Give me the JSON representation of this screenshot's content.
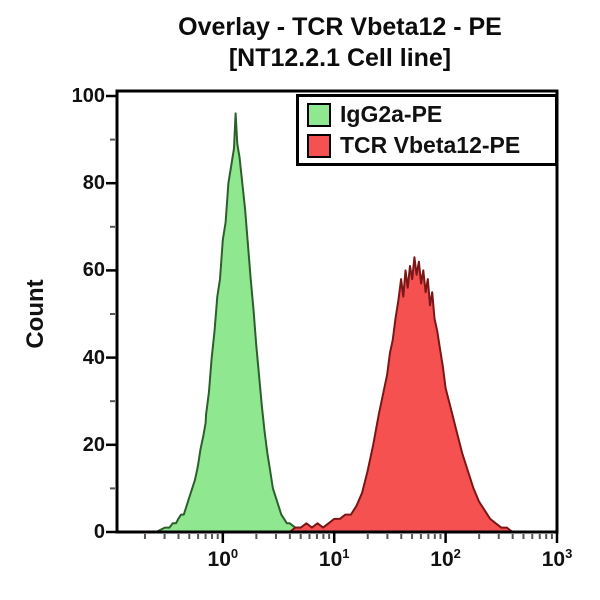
{
  "title": {
    "line1": "Overlay - TCR Vbeta12 - PE",
    "line2": "[NT12.2.1 Cell line]"
  },
  "axes": {
    "y_label": "Count",
    "y_ticks": [
      0,
      20,
      40,
      60,
      80,
      100
    ],
    "y_minor_ticks": [
      10,
      30,
      50,
      70,
      90
    ],
    "x_tick_base": "10",
    "x_tick_exponents": [
      0,
      1,
      2,
      3
    ]
  },
  "legend": {
    "items": [
      {
        "label": "IgG2a-PE",
        "fill": "#8fe88f",
        "border": "#000000"
      },
      {
        "label": "TCR Vbeta12-PE",
        "fill": "#f55151",
        "border": "#000000"
      }
    ]
  },
  "chart_data": {
    "type": "area",
    "subtype": "flow-cytometry-histogram-overlay",
    "title": "Overlay - TCR Vbeta12 - PE [NT12.2.1 Cell line]",
    "xlabel": "",
    "ylabel": "Count",
    "x_scale": "log10",
    "xlim_log10": [
      -0.95,
      3.0
    ],
    "ylim": [
      0,
      100
    ],
    "x_ticks_log10": [
      0,
      1,
      2,
      3
    ],
    "y_ticks": [
      0,
      20,
      40,
      60,
      80,
      100
    ],
    "grid": false,
    "legend_position": "top-right",
    "series": [
      {
        "name": "IgG2a-PE",
        "fill": "#8fe88f",
        "stroke": "#2d5e2d",
        "peak_log10x": 0.115,
        "peak_count": 96,
        "points_log10x_count": [
          [
            -0.6,
            0
          ],
          [
            -0.52,
            1
          ],
          [
            -0.48,
            1
          ],
          [
            -0.45,
            2
          ],
          [
            -0.42,
            2
          ],
          [
            -0.4,
            3
          ],
          [
            -0.375,
            4
          ],
          [
            -0.35,
            4
          ],
          [
            -0.325,
            6
          ],
          [
            -0.3,
            8
          ],
          [
            -0.275,
            10
          ],
          [
            -0.25,
            12
          ],
          [
            -0.225,
            15
          ],
          [
            -0.2,
            19
          ],
          [
            -0.175,
            22
          ],
          [
            -0.155,
            25
          ],
          [
            -0.15,
            27
          ],
          [
            -0.125,
            32
          ],
          [
            -0.1,
            40
          ],
          [
            -0.075,
            46
          ],
          [
            -0.05,
            54
          ],
          [
            -0.025,
            58
          ],
          [
            0.0,
            67
          ],
          [
            0.025,
            71
          ],
          [
            0.05,
            80
          ],
          [
            0.075,
            84
          ],
          [
            0.1,
            88
          ],
          [
            0.115,
            96
          ],
          [
            0.13,
            89
          ],
          [
            0.15,
            86
          ],
          [
            0.175,
            80
          ],
          [
            0.2,
            74
          ],
          [
            0.225,
            66
          ],
          [
            0.25,
            58
          ],
          [
            0.275,
            51
          ],
          [
            0.3,
            43
          ],
          [
            0.325,
            36
          ],
          [
            0.35,
            29
          ],
          [
            0.375,
            23
          ],
          [
            0.4,
            18
          ],
          [
            0.425,
            14
          ],
          [
            0.45,
            10
          ],
          [
            0.475,
            8
          ],
          [
            0.5,
            6
          ],
          [
            0.525,
            4
          ],
          [
            0.55,
            3
          ],
          [
            0.575,
            2
          ],
          [
            0.6,
            2
          ],
          [
            0.65,
            1
          ],
          [
            0.7,
            1
          ],
          [
            0.75,
            0
          ]
        ]
      },
      {
        "name": "TCR Vbeta12-PE",
        "fill": "#f55151",
        "stroke": "#7b1616",
        "peak_log10x": 1.72,
        "peak_count": 63,
        "points_log10x_count": [
          [
            0.6,
            0
          ],
          [
            0.65,
            1
          ],
          [
            0.7,
            1
          ],
          [
            0.75,
            2
          ],
          [
            0.8,
            1
          ],
          [
            0.85,
            2
          ],
          [
            0.9,
            1
          ],
          [
            0.95,
            2
          ],
          [
            1.0,
            3
          ],
          [
            1.05,
            3
          ],
          [
            1.1,
            4
          ],
          [
            1.15,
            4
          ],
          [
            1.2,
            6
          ],
          [
            1.25,
            9
          ],
          [
            1.3,
            14
          ],
          [
            1.35,
            20
          ],
          [
            1.4,
            27
          ],
          [
            1.45,
            33
          ],
          [
            1.475,
            36
          ],
          [
            1.5,
            41
          ],
          [
            1.525,
            44
          ],
          [
            1.55,
            49
          ],
          [
            1.575,
            53
          ],
          [
            1.6,
            58
          ],
          [
            1.62,
            54
          ],
          [
            1.64,
            60
          ],
          [
            1.66,
            56
          ],
          [
            1.68,
            61
          ],
          [
            1.7,
            58
          ],
          [
            1.72,
            63
          ],
          [
            1.74,
            59
          ],
          [
            1.76,
            62
          ],
          [
            1.78,
            57
          ],
          [
            1.8,
            60
          ],
          [
            1.82,
            55
          ],
          [
            1.84,
            58
          ],
          [
            1.86,
            52
          ],
          [
            1.88,
            55
          ],
          [
            1.9,
            49
          ],
          [
            1.925,
            46
          ],
          [
            1.95,
            42
          ],
          [
            1.975,
            38
          ],
          [
            2.0,
            33
          ],
          [
            2.05,
            28
          ],
          [
            2.1,
            23
          ],
          [
            2.15,
            18
          ],
          [
            2.2,
            14
          ],
          [
            2.25,
            10
          ],
          [
            2.3,
            7
          ],
          [
            2.35,
            5
          ],
          [
            2.4,
            3
          ],
          [
            2.45,
            2
          ],
          [
            2.5,
            1
          ],
          [
            2.55,
            1
          ],
          [
            2.6,
            0
          ]
        ]
      }
    ]
  }
}
